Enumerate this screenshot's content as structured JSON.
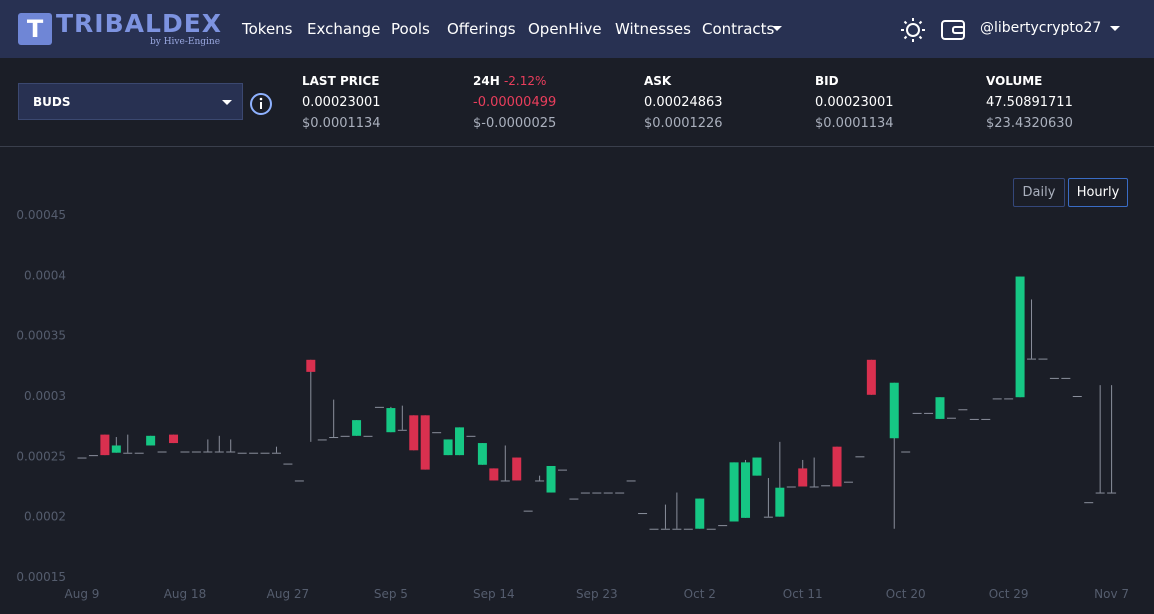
{
  "header": {
    "logo": "TRIBALDEX",
    "logo_sub": "by Hive-Engine",
    "nav": [
      "Tokens",
      "Exchange",
      "Pools",
      "Offerings",
      "OpenHive",
      "Witnesses",
      "Contracts"
    ],
    "user": "@libertycrypto27"
  },
  "market": {
    "token": "BUDS",
    "stats": [
      {
        "label": "LAST PRICE",
        "value": "0.00023001",
        "usd": "$0.0001134"
      },
      {
        "label": "24H",
        "change": "-2.12%",
        "value": "-0.00000499",
        "usd": "$-0.0000025"
      },
      {
        "label": "ASK",
        "value": "0.00024863",
        "usd": "$0.0001226"
      },
      {
        "label": "BID",
        "value": "0.00023001",
        "usd": "$0.0001134"
      },
      {
        "label": "VOLUME",
        "value": "47.50891711",
        "usd": "$23.4320630"
      }
    ],
    "buttons": [
      "Daily",
      "Hourly"
    ]
  },
  "chart_data": {
    "type": "candlestick",
    "up_color": "#16c784",
    "down_color": "#d9304f",
    "categories": [
      "Aug 9",
      null,
      null,
      null,
      null,
      null,
      null,
      null,
      null,
      "Aug 18",
      null,
      null,
      null,
      null,
      null,
      null,
      null,
      null,
      "Aug 27",
      null,
      null,
      null,
      null,
      null,
      null,
      null,
      null,
      "Sep 5",
      null,
      null,
      null,
      null,
      null,
      null,
      null,
      null,
      "Sep 14",
      null,
      null,
      null,
      null,
      null,
      null,
      null,
      null,
      "Sep 23",
      null,
      null,
      null,
      null,
      null,
      null,
      null,
      null,
      "Oct 2",
      null,
      null,
      null,
      null,
      null,
      null,
      null,
      null,
      "Oct 11",
      null,
      null,
      null,
      null,
      null,
      null,
      null,
      null,
      "Oct 20",
      null,
      null,
      null,
      null,
      null,
      null,
      null,
      null,
      "Oct 29",
      null,
      null,
      null,
      null,
      null,
      null,
      null,
      null,
      "Nov 7"
    ],
    "open": [
      0.000249,
      0.000251,
      0.000268,
      0.000253,
      0.000253,
      0.000253,
      0.000259,
      0.000254,
      0.000268,
      0.000254,
      0.000254,
      0.000254,
      0.000254,
      0.000254,
      0.000253,
      0.000253,
      0.000253,
      0.000253,
      0.000244,
      0.00023,
      0.00033,
      0.000264,
      0.000266,
      0.000267,
      0.000267,
      0.000267,
      0.000291,
      0.00027,
      0.000272,
      0.000284,
      0.000284,
      0.00027,
      0.000251,
      0.000251,
      0.000267,
      0.000243,
      0.00024,
      0.00023,
      0.000249,
      0.000205,
      0.00023,
      0.00022,
      0.000239,
      0.000215,
      0.00022,
      0.00022,
      0.00022,
      0.00022,
      0.00023,
      0.000203,
      0.00019,
      0.00019,
      0.00019,
      0.00019,
      0.00019,
      0.00019,
      0.000193,
      0.000196,
      0.000199,
      0.000234,
      0.0002,
      0.0002,
      0.000225,
      0.00024,
      0.000225,
      0.000226,
      0.000258,
      0.000229,
      0.00025,
      0.00033,
      null,
      0.000265,
      0.000254,
      0.000286,
      0.000286,
      0.000281,
      0.000282,
      0.000289,
      0.000281,
      0.000281,
      0.000298,
      0.000298,
      0.000299,
      0.000331,
      0.000331,
      0.000315,
      0.000315,
      0.0003,
      0.000212,
      0.00022,
      0.00022
    ],
    "close": [
      0.000249,
      0.000251,
      0.000251,
      0.000259,
      0.000253,
      0.000253,
      0.000267,
      0.000254,
      0.000261,
      0.000254,
      0.000254,
      0.000254,
      0.000254,
      0.000254,
      0.000253,
      0.000253,
      0.000253,
      0.000253,
      0.000244,
      0.00023,
      0.00032,
      0.000264,
      0.000266,
      0.000267,
      0.00028,
      0.000267,
      0.000291,
      0.00029,
      0.000272,
      0.000255,
      0.000239,
      0.00027,
      0.000264,
      0.000274,
      0.000267,
      0.000261,
      0.00023,
      0.00023,
      0.00023,
      0.000205,
      0.00023,
      0.000242,
      0.000239,
      0.000215,
      0.00022,
      0.00022,
      0.00022,
      0.00022,
      0.00023,
      0.000203,
      0.00019,
      0.00019,
      0.00019,
      0.00019,
      0.000215,
      0.00019,
      0.000193,
      0.000245,
      0.000245,
      0.000249,
      0.0002,
      0.000224,
      0.000225,
      0.000225,
      0.000225,
      0.000226,
      0.000225,
      0.000229,
      0.00025,
      0.000301,
      null,
      0.000311,
      0.000254,
      0.000286,
      0.000286,
      0.000299,
      0.000282,
      0.000289,
      0.000281,
      0.000281,
      0.000298,
      0.000298,
      0.000399,
      0.000331,
      0.000331,
      0.000315,
      0.000315,
      0.0003,
      0.000212,
      0.00022,
      0.00022
    ],
    "high": [
      0.000249,
      0.000251,
      0.000268,
      0.000266,
      0.000268,
      0.000253,
      0.000267,
      0.000254,
      0.000268,
      0.000254,
      0.000254,
      0.000264,
      0.000267,
      0.000264,
      0.000253,
      0.000253,
      0.000253,
      0.000258,
      0.000244,
      0.00023,
      0.00033,
      0.000264,
      0.000297,
      0.000267,
      0.00028,
      0.000267,
      0.000291,
      0.000291,
      0.000292,
      0.000284,
      0.000284,
      0.00027,
      0.000264,
      0.000274,
      0.000267,
      0.000261,
      0.00024,
      0.000259,
      0.000249,
      0.000205,
      0.000234,
      0.000242,
      0.000239,
      0.000215,
      0.00022,
      0.00022,
      0.00022,
      0.00022,
      0.00023,
      0.000203,
      0.00019,
      0.00021,
      0.00022,
      0.00019,
      0.000215,
      0.00019,
      0.000193,
      0.000245,
      0.000247,
      0.000249,
      0.000232,
      0.000262,
      0.000225,
      0.000247,
      0.000249,
      0.000226,
      0.000258,
      0.000229,
      0.00025,
      0.00033,
      null,
      0.000311,
      0.000254,
      0.000286,
      0.000286,
      0.000299,
      0.000282,
      0.000289,
      0.000281,
      0.000281,
      0.000298,
      0.000298,
      0.000399,
      0.00038,
      0.000331,
      0.000315,
      0.000315,
      0.0003,
      0.000212,
      0.000309,
      0.000309
    ],
    "low": [
      0.000249,
      0.000251,
      0.000251,
      0.000253,
      0.000253,
      0.000253,
      0.000259,
      0.000254,
      0.000261,
      0.000254,
      0.000254,
      0.000254,
      0.000254,
      0.000254,
      0.000253,
      0.000253,
      0.000253,
      0.000253,
      0.000244,
      0.00023,
      0.000262,
      0.000264,
      0.000266,
      0.000267,
      0.000267,
      0.000267,
      0.000291,
      0.00027,
      0.000272,
      0.000255,
      0.000239,
      0.00027,
      0.000251,
      0.000251,
      0.000267,
      0.000243,
      0.00023,
      0.00023,
      0.00023,
      0.000205,
      0.00023,
      0.00022,
      0.000239,
      0.000215,
      0.00022,
      0.00022,
      0.00022,
      0.00022,
      0.00023,
      0.000203,
      0.00019,
      0.00019,
      0.00019,
      0.00019,
      0.00019,
      0.00019,
      0.000193,
      0.000196,
      0.000199,
      0.000234,
      0.0002,
      0.0002,
      0.000225,
      0.000225,
      0.000225,
      0.000226,
      0.000225,
      0.000229,
      0.00025,
      0.000301,
      null,
      0.00019,
      0.000254,
      0.000286,
      0.000286,
      0.000281,
      0.000282,
      0.000289,
      0.000281,
      0.000281,
      0.000298,
      0.000298,
      0.000299,
      0.000331,
      0.000331,
      0.000315,
      0.000315,
      0.0003,
      0.000212,
      0.00022,
      0.00022
    ],
    "ylim": [
      0.00015,
      0.00045
    ],
    "yticks": [
      0.00015,
      0.0002,
      0.00025,
      0.0003,
      0.00035,
      0.0004,
      0.00045
    ],
    "grid": false
  }
}
